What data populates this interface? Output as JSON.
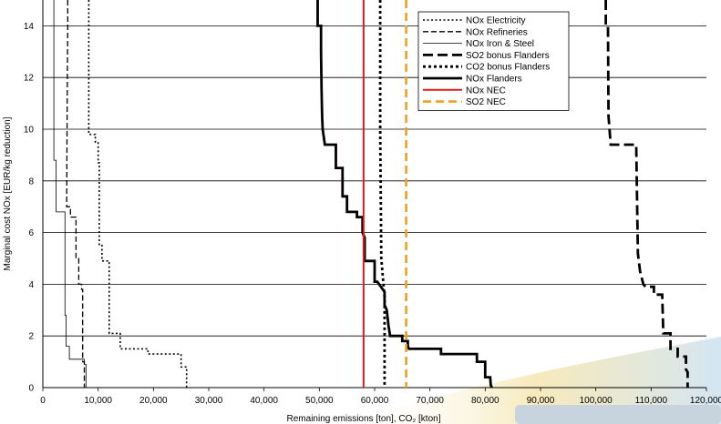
{
  "chart_data": {
    "type": "line",
    "xlabel": "Remaining emissions [ton], CO₂ [kton]",
    "ylabel": "Marginal cost NOx [EUR/kg reduction]",
    "xlim": [
      0,
      120000
    ],
    "ylim": [
      0,
      15
    ],
    "x_ticks": [
      "0",
      "10,000",
      "20,000",
      "30,000",
      "40,000",
      "50,000",
      "60,000",
      "70,000",
      "80,000",
      "90,000",
      "100,000",
      "110,000",
      "120,000"
    ],
    "y_ticks": [
      "0",
      "2",
      "4",
      "6",
      "8",
      "10",
      "12",
      "14"
    ],
    "grid": "horizontal",
    "legend_position": "top-right",
    "series": [
      {
        "name": "NOx Electricity",
        "color": "#000000",
        "style": "dotted-thin",
        "points": [
          [
            8300,
            15
          ],
          [
            8300,
            9.8
          ],
          [
            9500,
            9.8
          ],
          [
            9500,
            9.5
          ],
          [
            10000,
            9.5
          ],
          [
            10000,
            8.7
          ],
          [
            10200,
            8.7
          ],
          [
            10200,
            7.0
          ],
          [
            10200,
            5.5
          ],
          [
            10700,
            5.5
          ],
          [
            10700,
            4.9
          ],
          [
            12000,
            4.9
          ],
          [
            12000,
            3.2
          ],
          [
            12000,
            2.1
          ],
          [
            14000,
            2.1
          ],
          [
            14000,
            1.5
          ],
          [
            19000,
            1.5
          ],
          [
            19000,
            1.3
          ],
          [
            25000,
            1.3
          ],
          [
            25000,
            0.8
          ],
          [
            26000,
            0.8
          ],
          [
            26000,
            0
          ]
        ]
      },
      {
        "name": "NOx Refineries",
        "color": "#000000",
        "style": "dashed-thin",
        "points": [
          [
            4500,
            15
          ],
          [
            4500,
            14
          ],
          [
            4400,
            11
          ],
          [
            4300,
            7
          ],
          [
            5000,
            7
          ],
          [
            5000,
            6.6
          ],
          [
            6000,
            6.6
          ],
          [
            6000,
            5.0
          ],
          [
            6500,
            5.0
          ],
          [
            6500,
            4.0
          ],
          [
            7000,
            4.0
          ],
          [
            7000,
            3.8
          ],
          [
            7200,
            3.8
          ],
          [
            7200,
            1.0
          ],
          [
            7500,
            1.0
          ],
          [
            7500,
            0
          ]
        ]
      },
      {
        "name": "NOx Iron & Steel",
        "color": "#000000",
        "style": "solid-thin",
        "points": [
          [
            2000,
            15
          ],
          [
            2000,
            8.8
          ],
          [
            2400,
            8.8
          ],
          [
            2400,
            6.8
          ],
          [
            4000,
            6.8
          ],
          [
            4000,
            2.8
          ],
          [
            4200,
            2.8
          ],
          [
            4200,
            1.6
          ],
          [
            4800,
            1.6
          ],
          [
            4800,
            1.1
          ],
          [
            7500,
            1.1
          ],
          [
            7500,
            0.9
          ],
          [
            7800,
            0.9
          ],
          [
            7800,
            0
          ]
        ]
      },
      {
        "name": "SO2 bonus Flanders",
        "color": "#000000",
        "style": "dashed-thick",
        "points": [
          [
            101800,
            15
          ],
          [
            101800,
            14.0
          ],
          [
            102200,
            14.0
          ],
          [
            102300,
            10.5
          ],
          [
            102700,
            9.4
          ],
          [
            105000,
            9.4
          ],
          [
            107300,
            9.4
          ],
          [
            107600,
            5.2
          ],
          [
            108000,
            4.5
          ],
          [
            108600,
            4.0
          ],
          [
            109000,
            3.9
          ],
          [
            110500,
            3.9
          ],
          [
            110500,
            3.6
          ],
          [
            112000,
            3.6
          ],
          [
            112200,
            2.1
          ],
          [
            113500,
            2.1
          ],
          [
            113500,
            1.5
          ],
          [
            114800,
            1.5
          ],
          [
            114800,
            1.2
          ],
          [
            116300,
            1.2
          ],
          [
            116300,
            0.7
          ],
          [
            116600,
            0.6
          ],
          [
            116600,
            0
          ]
        ]
      },
      {
        "name": "CO2 bonus Flanders",
        "color": "#000000",
        "style": "dotted-thick",
        "points": [
          [
            61000,
            15
          ],
          [
            61000,
            10
          ],
          [
            61200,
            5
          ],
          [
            61800,
            3.5
          ],
          [
            61800,
            0
          ]
        ]
      },
      {
        "name": "NOx Flanders",
        "color": "#000000",
        "style": "solid-thick",
        "points": [
          [
            49700,
            15
          ],
          [
            49700,
            14.0
          ],
          [
            50300,
            14.0
          ],
          [
            50300,
            13.0
          ],
          [
            50400,
            11.5
          ],
          [
            50500,
            10.5
          ],
          [
            50600,
            10.0
          ],
          [
            51000,
            9.4
          ],
          [
            53000,
            9.4
          ],
          [
            53000,
            8.5
          ],
          [
            54200,
            8.5
          ],
          [
            54200,
            7.4
          ],
          [
            55000,
            7.4
          ],
          [
            55000,
            7.1
          ],
          [
            55000,
            6.8
          ],
          [
            56800,
            6.8
          ],
          [
            56800,
            6.6
          ],
          [
            57800,
            6.6
          ],
          [
            57800,
            6.0
          ],
          [
            58200,
            5.8
          ],
          [
            58200,
            4.9
          ],
          [
            60000,
            4.9
          ],
          [
            60000,
            4.1
          ],
          [
            60500,
            4.1
          ],
          [
            61800,
            3.7
          ],
          [
            61800,
            3.2
          ],
          [
            62200,
            3.0
          ],
          [
            62500,
            2.4
          ],
          [
            62800,
            2.0
          ],
          [
            65000,
            2.0
          ],
          [
            65000,
            1.8
          ],
          [
            66000,
            1.8
          ],
          [
            66000,
            1.6
          ],
          [
            66200,
            1.5
          ],
          [
            72000,
            1.5
          ],
          [
            72000,
            1.3
          ],
          [
            78500,
            1.3
          ],
          [
            78500,
            1.0
          ],
          [
            80000,
            1.0
          ],
          [
            80000,
            0.4
          ],
          [
            80900,
            0.4
          ],
          [
            81000,
            0.1
          ],
          [
            81200,
            0
          ]
        ]
      },
      {
        "name": "NOx NEC",
        "color": "#dd1a1a",
        "style": "vertical-solid",
        "x": 58000
      },
      {
        "name": "SO2 NEC",
        "color": "#f0a020",
        "style": "vertical-dashed",
        "x": 65700
      }
    ]
  }
}
